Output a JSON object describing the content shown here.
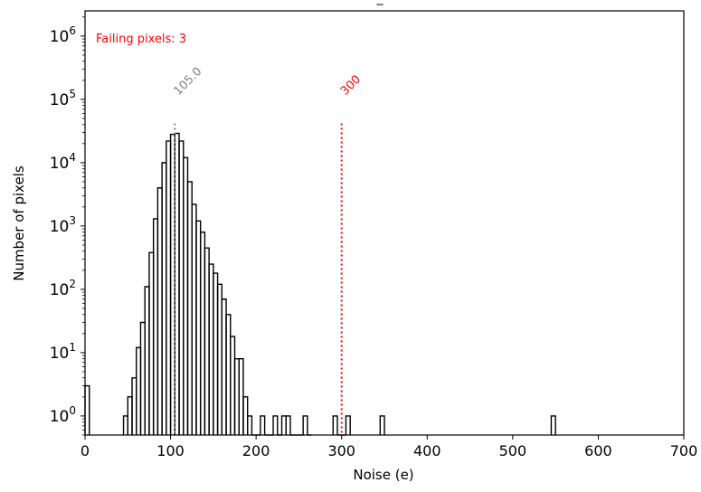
{
  "chart_data": {
    "type": "histogram",
    "title": "_",
    "xlabel": "Noise (e)",
    "ylabel": "Number of pixels",
    "xlim": [
      0,
      700
    ],
    "ylim": [
      0.5,
      2500000
    ],
    "yscale": "log",
    "grid": false,
    "x_ticks": [
      0,
      100,
      200,
      300,
      400,
      500,
      600,
      700
    ],
    "y_ticks": [
      {
        "base": "10",
        "exp": "0",
        "value": 1
      },
      {
        "base": "10",
        "exp": "1",
        "value": 10
      },
      {
        "base": "10",
        "exp": "2",
        "value": 100
      },
      {
        "base": "10",
        "exp": "3",
        "value": 1000
      },
      {
        "base": "10",
        "exp": "4",
        "value": 10000
      },
      {
        "base": "10",
        "exp": "5",
        "value": 100000
      },
      {
        "base": "10",
        "exp": "6",
        "value": 1000000
      }
    ],
    "bin_width": 5,
    "bins": [
      [
        0,
        3
      ],
      [
        45,
        1
      ],
      [
        50,
        2
      ],
      [
        55,
        4
      ],
      [
        60,
        12
      ],
      [
        65,
        30
      ],
      [
        70,
        110
      ],
      [
        75,
        380
      ],
      [
        80,
        1300
      ],
      [
        85,
        4000
      ],
      [
        90,
        10000
      ],
      [
        95,
        22000
      ],
      [
        100,
        28000
      ],
      [
        105,
        29000
      ],
      [
        110,
        22000
      ],
      [
        115,
        12000
      ],
      [
        120,
        5000
      ],
      [
        125,
        2200
      ],
      [
        130,
        1200
      ],
      [
        135,
        800
      ],
      [
        140,
        450
      ],
      [
        145,
        250
      ],
      [
        150,
        180
      ],
      [
        155,
        120
      ],
      [
        160,
        70
      ],
      [
        165,
        40
      ],
      [
        170,
        18
      ],
      [
        175,
        8
      ],
      [
        180,
        8
      ],
      [
        185,
        2
      ],
      [
        190,
        1
      ],
      [
        195,
        0.5
      ],
      [
        200,
        0.5
      ],
      [
        205,
        1
      ],
      [
        210,
        0.5
      ],
      [
        215,
        0.5
      ],
      [
        220,
        1
      ],
      [
        225,
        0.5
      ],
      [
        230,
        1
      ],
      [
        235,
        1
      ],
      [
        240,
        0.5
      ],
      [
        245,
        0.5
      ],
      [
        250,
        0.5
      ],
      [
        255,
        1
      ],
      [
        260,
        0.5
      ],
      [
        290,
        1
      ],
      [
        295,
        0.5
      ],
      [
        300,
        0.5
      ],
      [
        305,
        1
      ],
      [
        345,
        1
      ],
      [
        545,
        1
      ]
    ],
    "vlines": [
      {
        "x": 105,
        "label": "105.0",
        "color": "#808080"
      },
      {
        "x": 300,
        "label": "300",
        "color": "#ff0000"
      }
    ],
    "annotation": {
      "text": "Failing pixels: 3",
      "color": "#ff0000"
    },
    "line_color": "#000000"
  }
}
